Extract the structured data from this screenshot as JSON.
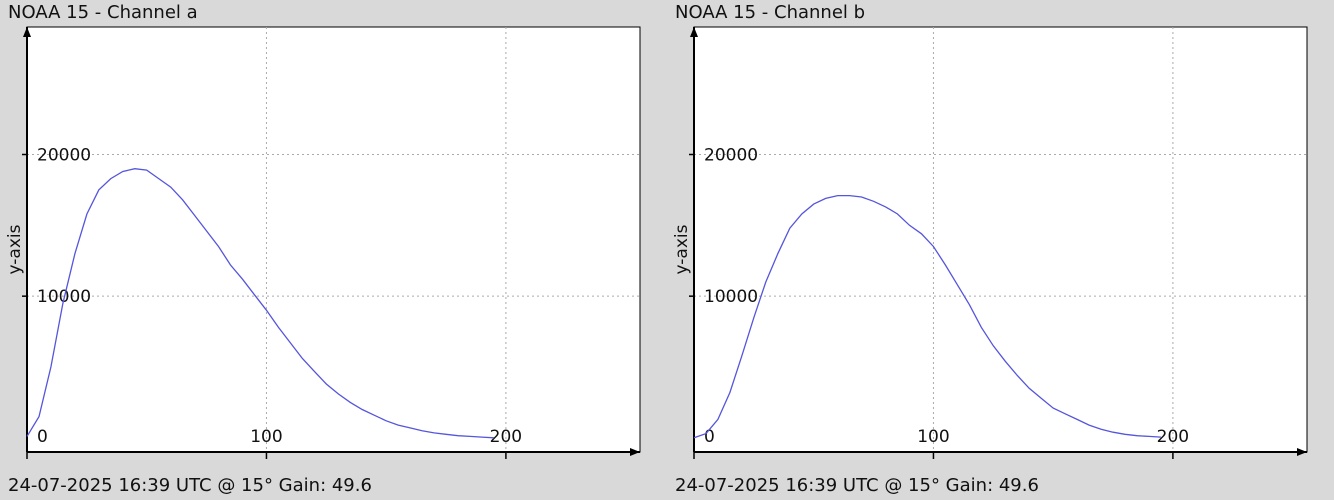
{
  "panels": [
    {
      "title": "NOAA 15 - Channel a",
      "footer": "24-07-2025 16:39 UTC @ 15° Gain: 49.6"
    },
    {
      "title": "NOAA 15 - Channel b",
      "footer": "24-07-2025 16:39 UTC @ 15° Gain: 49.6"
    }
  ],
  "colors": {
    "line": "#5555dd",
    "plot_bg": "#ffffff",
    "page_bg": "#d9d9d9",
    "grid": "#aaaaaa",
    "axis": "#000000"
  },
  "chart_data": [
    {
      "type": "line",
      "title": "NOAA 15 - Channel a",
      "xlabel": "",
      "ylabel": "y-axis",
      "xlim": [
        0,
        256
      ],
      "ylim": [
        -1000,
        29000
      ],
      "grid": true,
      "x_ticks": [
        0,
        100,
        200
      ],
      "y_ticks": [
        10000,
        20000
      ],
      "x_tick_labels": [
        "0",
        "100",
        "200"
      ],
      "y_tick_labels": [
        "10000",
        "20000"
      ],
      "series": [
        {
          "x": [
            0,
            5,
            10,
            15,
            20,
            25,
            30,
            35,
            40,
            45,
            50,
            55,
            60,
            65,
            70,
            75,
            80,
            85,
            90,
            95,
            100,
            105,
            110,
            115,
            120,
            125,
            130,
            135,
            140,
            145,
            150,
            155,
            160,
            165,
            170,
            175,
            180,
            185,
            190,
            195
          ],
          "y": [
            100,
            1500,
            5000,
            9500,
            13000,
            15800,
            17500,
            18300,
            18800,
            19000,
            18900,
            18300,
            17700,
            16800,
            15700,
            14600,
            13500,
            12200,
            11200,
            10100,
            9000,
            7800,
            6700,
            5600,
            4700,
            3800,
            3100,
            2500,
            2000,
            1600,
            1200,
            900,
            700,
            500,
            350,
            250,
            150,
            100,
            50,
            0
          ]
        }
      ]
    },
    {
      "type": "line",
      "title": "NOAA 15 - Channel b",
      "xlabel": "",
      "ylabel": "y-axis",
      "xlim": [
        0,
        256
      ],
      "ylim": [
        -1000,
        29000
      ],
      "grid": true,
      "x_ticks": [
        0,
        100,
        200
      ],
      "y_ticks": [
        10000,
        20000
      ],
      "x_tick_labels": [
        "0",
        "100",
        "200"
      ],
      "y_tick_labels": [
        "10000",
        "20000"
      ],
      "series": [
        {
          "x": [
            0,
            5,
            10,
            15,
            20,
            25,
            30,
            35,
            40,
            45,
            50,
            55,
            60,
            65,
            70,
            75,
            80,
            85,
            90,
            95,
            100,
            105,
            110,
            115,
            120,
            125,
            130,
            135,
            140,
            145,
            150,
            155,
            160,
            165,
            170,
            175,
            180,
            185,
            190,
            195
          ],
          "y": [
            0,
            300,
            1300,
            3200,
            5800,
            8500,
            11000,
            13000,
            14800,
            15800,
            16500,
            16900,
            17100,
            17100,
            17000,
            16700,
            16300,
            15800,
            15000,
            14400,
            13500,
            12200,
            10800,
            9400,
            7800,
            6500,
            5400,
            4400,
            3500,
            2800,
            2100,
            1700,
            1300,
            900,
            600,
            400,
            250,
            150,
            100,
            50
          ]
        }
      ]
    }
  ]
}
